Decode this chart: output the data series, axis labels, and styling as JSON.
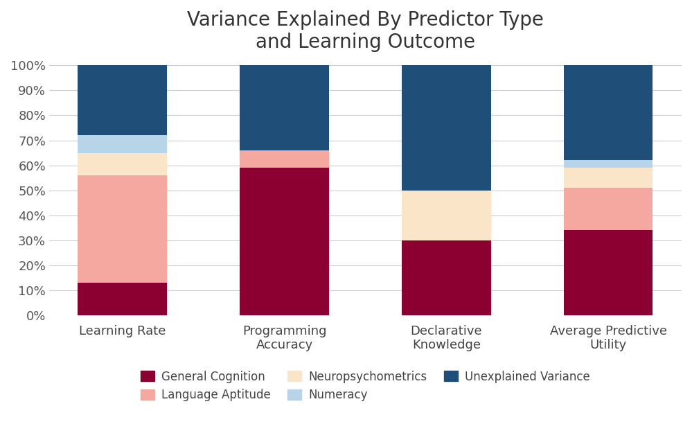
{
  "title": "Variance Explained By Predictor Type\nand Learning Outcome",
  "categories": [
    "Learning Rate",
    "Programming\nAccuracy",
    "Declarative\nKnowledge",
    "Average Predictive\nUtility"
  ],
  "series": {
    "General Cognition": [
      0.13,
      0.59,
      0.3,
      0.34
    ],
    "Language Aptitude": [
      0.43,
      0.07,
      0.0,
      0.17
    ],
    "Neuropsychometrics": [
      0.09,
      0.0,
      0.2,
      0.08
    ],
    "Numeracy": [
      0.07,
      0.0,
      0.0,
      0.03
    ],
    "Unexplained Variance": [
      0.28,
      0.34,
      0.5,
      0.38
    ]
  },
  "colors": {
    "General Cognition": "#8B0030",
    "Language Aptitude": "#F4A8A0",
    "Neuropsychometrics": "#FAE5C8",
    "Numeracy": "#B8D4E8",
    "Unexplained Variance": "#1F4E79"
  },
  "legend_row1": [
    "General Cognition",
    "Language Aptitude",
    "Neuropsychometrics"
  ],
  "legend_row2": [
    "Numeracy",
    "Unexplained Variance"
  ],
  "ylim": [
    0,
    1.0
  ],
  "yticks": [
    0.0,
    0.1,
    0.2,
    0.3,
    0.4,
    0.5,
    0.6,
    0.7,
    0.8,
    0.9,
    1.0
  ],
  "yticklabels": [
    "0%",
    "10%",
    "20%",
    "30%",
    "40%",
    "50%",
    "60%",
    "70%",
    "80%",
    "90%",
    "100%"
  ],
  "bar_width": 0.55,
  "background_color": "#FFFFFF",
  "title_fontsize": 20,
  "tick_fontsize": 13,
  "legend_fontsize": 12
}
